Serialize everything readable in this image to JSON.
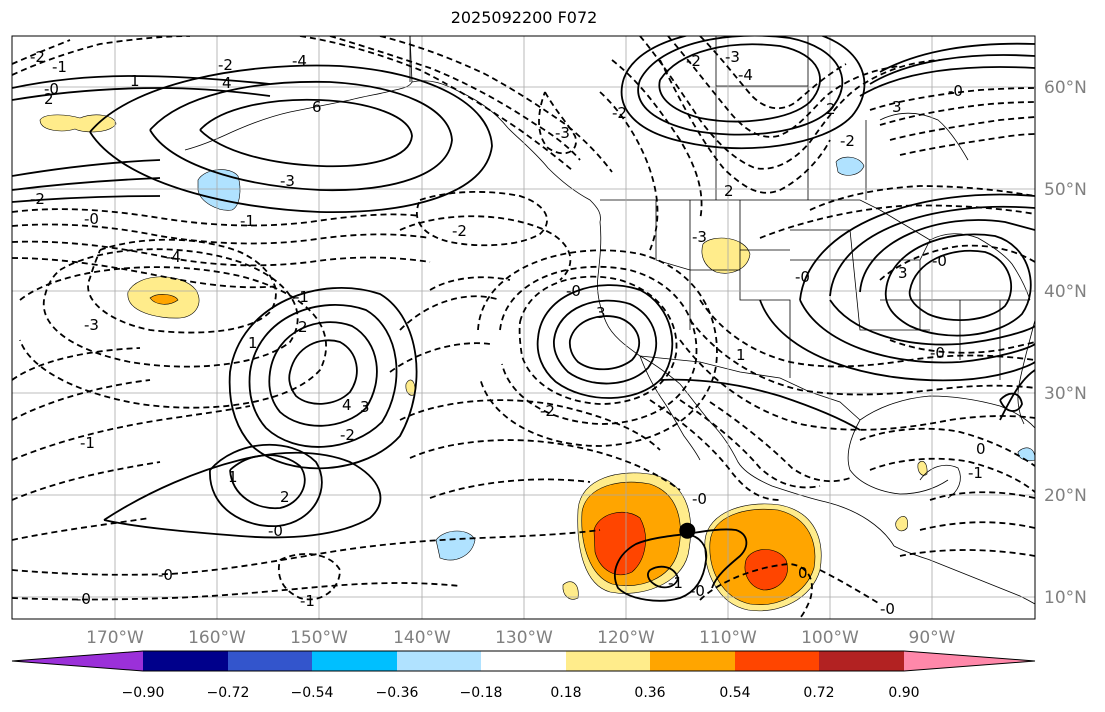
{
  "title": "2025092200 F072",
  "lon_labels": [
    "170°W",
    "160°W",
    "150°W",
    "140°W",
    "130°W",
    "120°W",
    "110°W",
    "100°W",
    "90°W"
  ],
  "lat_labels": [
    "60°N",
    "50°N",
    "40°N",
    "30°N",
    "20°N",
    "10°N"
  ],
  "colorbar": {
    "colors": [
      "#9b30d9",
      "#00008b",
      "#3355cc",
      "#00bfff",
      "#b0e2ff",
      "#ffffff",
      "#ffec8b",
      "#ffa500",
      "#ff4500",
      "#b22222",
      "#ff88aa"
    ],
    "tick_labels": [
      "−0.90",
      "−0.72",
      "−0.54",
      "−0.36",
      "−0.18",
      "0.18",
      "0.36",
      "0.54",
      "0.72",
      "0.90"
    ]
  },
  "contour_labels": [
    "-2",
    "-1",
    "-0",
    "1",
    "2",
    "-2",
    "-4",
    "4",
    "6",
    "-3",
    "-2",
    "-3",
    "-4",
    "-2",
    "2",
    "-2",
    "-0",
    "3",
    "-3",
    "-2",
    "-0",
    "-1",
    "-4",
    "-3",
    "-2",
    "-1",
    "1",
    "2",
    "-0",
    "3",
    "-2",
    "4",
    "3",
    "-2",
    "-1",
    "-0",
    "1",
    "2",
    "-0",
    "-0",
    "-3",
    "2",
    "-0",
    "3",
    "-0",
    "-0",
    "1",
    "0",
    "-0",
    "-0",
    "-1",
    "0",
    "-1",
    "-0",
    "-1"
  ],
  "marker": {
    "lon": -114,
    "lat": 16.5
  }
}
